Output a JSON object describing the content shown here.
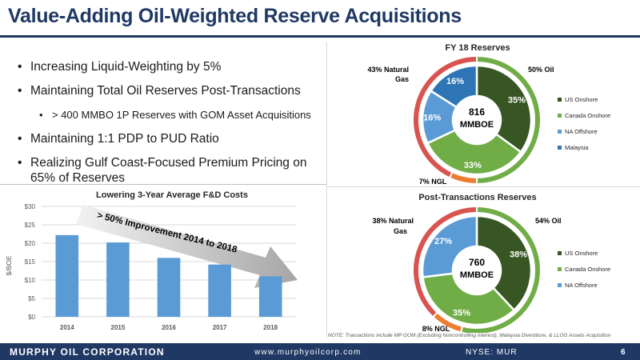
{
  "title": "Value-Adding Oil-Weighted Reserve Acquisitions",
  "bullets": [
    "Increasing Liquid-Weighting by 5%",
    "Maintaining Total Oil Reserves Post-Transactions",
    "> 400 MMBO 1P Reserves with GOM Asset Acquisitions",
    "Maintaining 1:1 PDP to PUD Ratio",
    "Realizing Gulf Coast-Focused Premium Pricing on 65% of Reserves"
  ],
  "note": "NOTE: Transactions include MP GOM (Excluding Noncontrolling Interest), Malaysia Divestiture, & LLOG Assets Acquisition",
  "footer": {
    "company": "MURPHY OIL CORPORATION",
    "website": "www.murphyoilcorp.com",
    "ticker": "NYSE: MUR",
    "page": "6"
  },
  "colors": {
    "us_onshore": "#375623",
    "canada_onshore": "#70ad47",
    "na_offshore": "#5b9bd5",
    "malaysia": "#2e75b6",
    "oil": "#70ad47",
    "gas": "#d9534f",
    "ngl": "#ed7d31",
    "bar": "#5b9bd5",
    "title": "#1f3864"
  },
  "chart_data": [
    {
      "type": "bar",
      "title": "Lowering 3-Year Average F&D Costs",
      "ylabel": "$/BOE",
      "categories": [
        "2014",
        "2015",
        "2016",
        "2017",
        "2018"
      ],
      "values": [
        22.2,
        20.2,
        16,
        14.2,
        11
      ],
      "ylim": [
        0,
        30
      ],
      "yticks": [
        "$0",
        "$5",
        "$10",
        "$15",
        "$20",
        "$25",
        "$30"
      ],
      "ytick_values": [
        0,
        5,
        10,
        15,
        20,
        25,
        30
      ],
      "annotation": "> 50% Improvement 2014 to 2018",
      "grid": true
    },
    {
      "type": "pie",
      "title": "FY 18 Reserves",
      "center_label": [
        "816",
        "MMBOE"
      ],
      "legend_position": "right",
      "inner": [
        {
          "name": "US Onshore",
          "value": 35,
          "label": "35%"
        },
        {
          "name": "Canada Onshore",
          "value": 33,
          "label": "33%"
        },
        {
          "name": "NA Offshore",
          "value": 16,
          "label": "16%"
        },
        {
          "name": "Malaysia",
          "value": 16,
          "label": "16%"
        }
      ],
      "outer": [
        {
          "name": "Oil",
          "value": 50,
          "label": "50% Oil"
        },
        {
          "name": "NGL",
          "value": 7,
          "label": "7% NGL"
        },
        {
          "name": "Natural Gas",
          "value": 43,
          "label": "43% Natural Gas"
        }
      ]
    },
    {
      "type": "pie",
      "title": "Post-Transactions Reserves",
      "center_label": [
        "760",
        "MMBOE"
      ],
      "legend_position": "right",
      "inner": [
        {
          "name": "US Onshore",
          "value": 38,
          "label": "38%"
        },
        {
          "name": "Canada Onshore",
          "value": 35,
          "label": "35%"
        },
        {
          "name": "NA Offshore",
          "value": 27,
          "label": "27%"
        }
      ],
      "outer": [
        {
          "name": "Oil",
          "value": 54,
          "label": "54% Oil"
        },
        {
          "name": "NGL",
          "value": 8,
          "label": "8% NGL"
        },
        {
          "name": "Natural Gas",
          "value": 38,
          "label": "38% Natural Gas"
        }
      ]
    }
  ]
}
